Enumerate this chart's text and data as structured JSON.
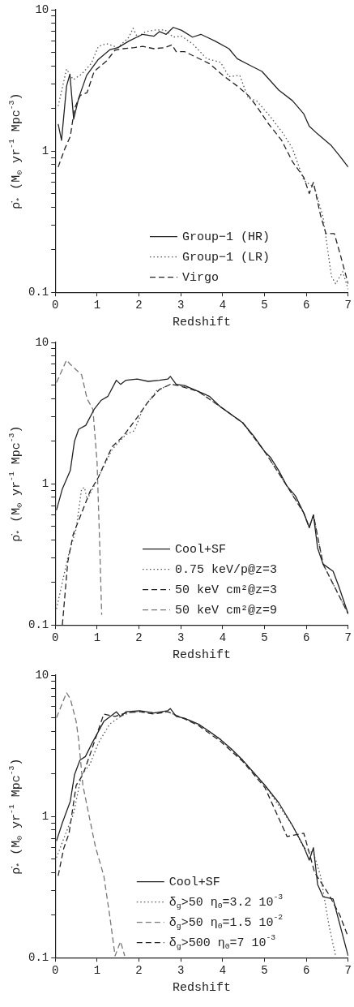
{
  "chart_data": [
    {
      "type": "line",
      "xlabel": "Redshift",
      "ylabel": "ρ̇$_{*}$ (M$_{⊙}$ yr$^{-1}$ Mpc$^{-3}$)",
      "log": "y",
      "grid": false,
      "legend": "bottom",
      "marker": "none",
      "xlim": [
        0,
        7
      ],
      "xticks": [
        0,
        1,
        2,
        3,
        4,
        5,
        6,
        7
      ],
      "ylim": [
        0.1,
        10
      ],
      "yticks": [
        0.1,
        {
          "value": 0.2,
          "label": null
        },
        {
          "value": 0.3,
          "label": null
        },
        {
          "value": 0.4,
          "label": null
        },
        {
          "value": 0.5,
          "label": null
        },
        {
          "value": 0.6,
          "label": null
        },
        {
          "value": 0.7,
          "label": null
        },
        {
          "value": 0.8,
          "label": null
        },
        {
          "value": 0.9,
          "label": null
        },
        1,
        {
          "value": 2,
          "label": null
        },
        {
          "value": 3,
          "label": null
        },
        {
          "value": 4,
          "label": null
        },
        {
          "value": 5,
          "label": null
        },
        {
          "value": 6,
          "label": null
        },
        {
          "value": 7,
          "label": null
        },
        {
          "value": 8,
          "label": null
        },
        {
          "value": 9,
          "label": null
        },
        10
      ],
      "series": [
        {
          "name": "Group−1 (HR)",
          "color": "#222222",
          "line_style": "solid",
          "x": [
            0.07,
            0.15,
            0.27,
            0.35,
            0.44,
            0.56,
            0.75,
            1.03,
            1.3,
            1.5,
            1.76,
            2.09,
            2.36,
            2.49,
            2.65,
            2.82,
            3.02,
            3.28,
            3.48,
            3.82,
            4.15,
            4.35,
            4.68,
            4.94,
            5.34,
            5.67,
            5.94,
            6.07,
            6.27,
            6.6,
            6.8,
            7.0
          ],
          "values": [
            1.55,
            1.19,
            2.88,
            3.5,
            1.68,
            2.37,
            3.43,
            4.45,
            5.2,
            5.4,
            6.0,
            6.7,
            6.5,
            7.0,
            6.7,
            7.5,
            7.15,
            6.4,
            6.7,
            6.0,
            5.3,
            4.5,
            4.0,
            3.66,
            2.7,
            2.27,
            1.83,
            1.5,
            1.32,
            1.09,
            0.92,
            0.77
          ]
        },
        {
          "name": "Group−1 (LR)",
          "color": "#555555",
          "line_style": "dotted",
          "x": [
            0.07,
            0.27,
            0.43,
            0.63,
            0.86,
            1.03,
            1.23,
            1.5,
            1.76,
            1.86,
            1.96,
            2.16,
            2.42,
            2.62,
            2.82,
            3.02,
            3.28,
            3.62,
            3.95,
            4.15,
            4.41,
            4.61,
            4.81,
            5.14,
            5.47,
            5.67,
            5.94,
            6.2,
            6.4,
            6.6,
            6.7,
            6.87,
            7.0
          ],
          "values": [
            2.08,
            3.8,
            3.2,
            3.5,
            4.16,
            5.5,
            5.75,
            5.4,
            6.4,
            7.4,
            6.4,
            7.0,
            7.2,
            7.2,
            6.4,
            6.5,
            5.75,
            4.5,
            4.25,
            3.36,
            3.43,
            2.37,
            2.27,
            1.75,
            1.3,
            1.04,
            0.62,
            0.55,
            0.34,
            0.13,
            0.115,
            0.14,
            0.105
          ]
        },
        {
          "name": "Virgo",
          "color": "#222222",
          "line_style": "dashed",
          "x": [
            0.07,
            0.23,
            0.36,
            0.46,
            0.6,
            0.76,
            0.93,
            1.23,
            1.43,
            1.63,
            1.89,
            2.09,
            2.36,
            2.62,
            2.79,
            2.89,
            3.09,
            3.35,
            3.68,
            4.01,
            4.35,
            4.61,
            4.81,
            5.08,
            5.41,
            5.67,
            5.94,
            6.07,
            6.17,
            6.34,
            6.47,
            6.67,
            6.8,
            7.0
          ],
          "values": [
            0.77,
            1.04,
            1.27,
            2.0,
            2.48,
            2.59,
            3.66,
            4.35,
            5.18,
            5.3,
            5.4,
            5.5,
            5.3,
            5.4,
            5.65,
            5.05,
            5.05,
            4.64,
            4.16,
            3.43,
            2.88,
            2.48,
            2.08,
            1.58,
            1.19,
            0.84,
            0.65,
            0.5,
            0.6,
            0.35,
            0.26,
            0.26,
            0.19,
            0.115
          ]
        }
      ]
    },
    {
      "type": "line",
      "xlabel": "Redshift",
      "ylabel": "ρ̇$_{*}$ (M$_{⊙}$ yr$^{-1}$ Mpc$^{-3}$)",
      "log": "y",
      "grid": false,
      "legend": "bottom",
      "marker": "none",
      "xlim": [
        0,
        7
      ],
      "xticks": [
        0,
        1,
        2,
        3,
        4,
        5,
        6,
        7
      ],
      "ylim": [
        0.1,
        10
      ],
      "yticks": [
        0.1,
        {
          "value": 0.2,
          "label": null
        },
        {
          "value": 0.3,
          "label": null
        },
        {
          "value": 0.4,
          "label": null
        },
        {
          "value": 0.5,
          "label": null
        },
        {
          "value": 0.6,
          "label": null
        },
        {
          "value": 0.7,
          "label": null
        },
        {
          "value": 0.8,
          "label": null
        },
        {
          "value": 0.9,
          "label": null
        },
        1,
        {
          "value": 2,
          "label": null
        },
        {
          "value": 3,
          "label": null
        },
        {
          "value": 4,
          "label": null
        },
        {
          "value": 5,
          "label": null
        },
        {
          "value": 6,
          "label": null
        },
        {
          "value": 7,
          "label": null
        },
        {
          "value": 8,
          "label": null
        },
        {
          "value": 9,
          "label": null
        },
        10
      ],
      "series": [
        {
          "name": "Cool+SF",
          "color": "#222222",
          "line_style": "solid",
          "x": [
            0.03,
            0.17,
            0.36,
            0.46,
            0.56,
            0.73,
            0.93,
            1.1,
            1.26,
            1.46,
            1.56,
            1.69,
            1.96,
            2.22,
            2.49,
            2.69,
            2.75,
            2.89,
            3.09,
            3.42,
            3.68,
            3.95,
            4.21,
            4.48,
            4.74,
            5.01,
            5.14,
            5.34,
            5.54,
            5.74,
            5.94,
            6.07,
            6.17,
            6.27,
            6.4,
            6.64,
            6.77,
            7.0
          ],
          "values": [
            0.65,
            0.92,
            1.24,
            2.0,
            2.43,
            2.59,
            3.36,
            3.9,
            4.16,
            5.4,
            5.05,
            5.4,
            5.5,
            5.3,
            5.4,
            5.5,
            5.75,
            5.05,
            4.95,
            4.5,
            4.16,
            3.5,
            3.08,
            2.7,
            2.18,
            1.68,
            1.54,
            1.24,
            0.96,
            0.82,
            0.62,
            0.49,
            0.6,
            0.35,
            0.27,
            0.24,
            0.19,
            0.12
          ]
        },
        {
          "name": "0.75 keV/p@z=3",
          "color": "#555555",
          "line_style": "dotted",
          "x": [
            0.03,
            0.3,
            0.5,
            0.63,
            0.7,
            0.76,
            1.03,
            1.36,
            1.69,
            1.89,
            2.09,
            2.42,
            2.75,
            3.02,
            3.42,
            3.95,
            4.48,
            5.01,
            5.54,
            5.94,
            6.07,
            6.17,
            6.4,
            7.0
          ],
          "values": [
            0.13,
            0.3,
            0.48,
            0.92,
            0.94,
            0.77,
            1.11,
            1.75,
            2.23,
            2.37,
            3.36,
            4.55,
            5.05,
            4.95,
            4.5,
            3.5,
            2.7,
            1.68,
            0.96,
            0.62,
            0.49,
            0.6,
            0.27,
            0.12
          ]
        },
        {
          "name": "50 keV cm²@z=3",
          "color": "#222222",
          "line_style": "dashed",
          "x": [
            0.17,
            0.3,
            0.43,
            0.63,
            0.83,
            1.03,
            1.36,
            1.63,
            1.96,
            2.22,
            2.49,
            2.75,
            2.95,
            3.42,
            3.95,
            4.48,
            5.01,
            5.54,
            5.94,
            6.07,
            6.17,
            6.4,
            7.0
          ],
          "values": [
            0.1,
            0.28,
            0.44,
            0.62,
            0.88,
            1.11,
            1.83,
            2.18,
            2.95,
            3.8,
            4.64,
            5.05,
            4.95,
            4.5,
            3.5,
            2.7,
            1.68,
            0.96,
            0.62,
            0.49,
            0.6,
            0.27,
            0.12
          ]
        },
        {
          "name": "50 keV cm²@z=9",
          "color": "#777777",
          "line_style": "dashed",
          "x": [
            0.03,
            0.27,
            0.36,
            0.5,
            0.63,
            0.76,
            0.9,
            1.0,
            1.06,
            1.11
          ],
          "values": [
            5.2,
            7.5,
            7.0,
            6.4,
            5.9,
            4.0,
            3.36,
            1.41,
            0.39,
            0.118
          ]
        }
      ]
    },
    {
      "type": "line",
      "xlabel": "Redshift",
      "ylabel": "ρ̇$_{*}$ (M$_{⊙}$ yr$^{-1}$ Mpc$^{-3}$)",
      "log": "y",
      "grid": false,
      "legend": "bottom",
      "marker": "none",
      "xlim": [
        0,
        7
      ],
      "xticks": [
        0,
        1,
        2,
        3,
        4,
        5,
        6,
        7
      ],
      "ylim": [
        0.1,
        10
      ],
      "yticks": [
        0.1,
        {
          "value": 0.2,
          "label": null
        },
        {
          "value": 0.3,
          "label": null
        },
        {
          "value": 0.4,
          "label": null
        },
        {
          "value": 0.5,
          "label": null
        },
        {
          "value": 0.6,
          "label": null
        },
        {
          "value": 0.7,
          "label": null
        },
        {
          "value": 0.8,
          "label": null
        },
        {
          "value": 0.9,
          "label": null
        },
        1,
        {
          "value": 2,
          "label": null
        },
        {
          "value": 3,
          "label": null
        },
        {
          "value": 4,
          "label": null
        },
        {
          "value": 5,
          "label": null
        },
        {
          "value": 6,
          "label": null
        },
        {
          "value": 7,
          "label": null
        },
        {
          "value": 8,
          "label": null
        },
        {
          "value": 9,
          "label": null
        },
        10
      ],
      "series": [
        {
          "name": "Cool+SF",
          "color": "#222222",
          "line_style": "solid",
          "x": [
            0.03,
            0.17,
            0.36,
            0.46,
            0.59,
            0.72,
            0.89,
            1.16,
            1.46,
            1.56,
            1.69,
            2.02,
            2.36,
            2.69,
            2.75,
            2.89,
            3.09,
            3.42,
            3.68,
            3.95,
            4.21,
            4.48,
            5.01,
            5.34,
            5.67,
            5.94,
            6.07,
            6.17,
            6.27,
            6.4,
            6.64,
            7.0
          ],
          "values": [
            0.67,
            0.9,
            1.28,
            1.97,
            2.5,
            2.65,
            3.34,
            4.7,
            5.5,
            5.1,
            5.5,
            5.6,
            5.4,
            5.6,
            5.8,
            5.1,
            4.95,
            4.5,
            4.0,
            3.5,
            3.0,
            2.5,
            1.66,
            1.25,
            0.86,
            0.61,
            0.49,
            0.6,
            0.33,
            0.27,
            0.26,
            0.103
          ]
        },
        {
          "name": "δ$_{g}$>50 η$_{0}$=3.2 10$^{-3}$",
          "color": "#555555",
          "line_style": "dotted",
          "x": [
            0.03,
            0.23,
            0.43,
            0.63,
            0.83,
            1.03,
            1.3,
            1.56,
            1.83,
            2.09,
            2.36,
            2.69,
            3.09,
            3.42,
            3.95,
            4.48,
            5.01,
            5.67,
            5.94,
            6.17,
            6.34,
            6.54,
            6.7
          ],
          "values": [
            0.51,
            0.73,
            1.03,
            1.97,
            2.34,
            3.3,
            4.5,
            5.1,
            5.5,
            5.5,
            5.4,
            5.5,
            4.9,
            4.5,
            3.5,
            2.5,
            1.66,
            0.86,
            0.6,
            0.55,
            0.38,
            0.17,
            0.103
          ]
        },
        {
          "name": "δ$_{g}$>50 η$_{0}$=1.5 10$^{-2}$",
          "color": "#777777",
          "line_style": "dashed",
          "x": [
            0.03,
            0.27,
            0.36,
            0.5,
            0.56,
            0.66,
            0.83,
            0.96,
            1.16,
            1.3,
            1.43,
            1.56,
            1.66
          ],
          "values": [
            5.0,
            7.5,
            6.8,
            4.7,
            3.46,
            1.66,
            0.94,
            0.61,
            0.38,
            0.2,
            0.103,
            0.13,
            0.103
          ]
        },
        {
          "name": "δ$_{g}$>500 η$_{0}$=7 10$^{-3}$",
          "color": "#222222",
          "line_style": "dashed",
          "x": [
            0.07,
            0.2,
            0.33,
            0.5,
            0.66,
            0.86,
            1.16,
            1.43,
            1.69,
            2.02,
            2.36,
            2.69,
            3.09,
            3.42,
            3.95,
            4.48,
            5.01,
            5.54,
            5.94,
            6.2,
            6.54,
            6.8,
            7.0
          ],
          "values": [
            0.38,
            0.59,
            0.76,
            1.66,
            1.97,
            2.9,
            5.3,
            5.1,
            5.4,
            5.5,
            5.3,
            5.5,
            4.9,
            4.4,
            3.4,
            2.45,
            1.6,
            0.72,
            0.76,
            0.4,
            0.28,
            0.2,
            0.14
          ]
        }
      ]
    }
  ]
}
